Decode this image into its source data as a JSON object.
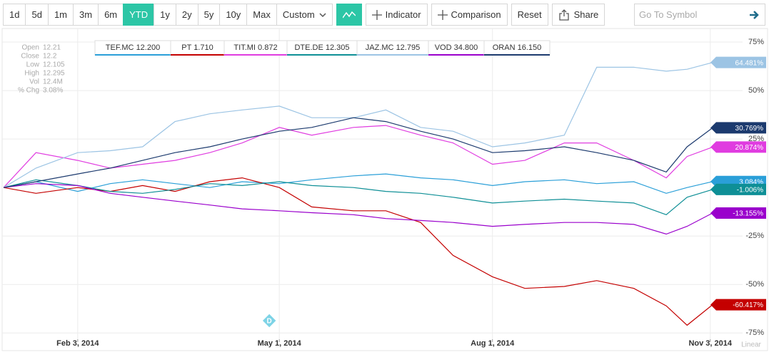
{
  "toolbar": {
    "ranges": [
      "1d",
      "5d",
      "1m",
      "3m",
      "6m",
      "YTD",
      "1y",
      "2y",
      "5y",
      "10y",
      "Max"
    ],
    "active_range": "YTD",
    "custom": "Custom",
    "indicator": "Indicator",
    "comparison": "Comparison",
    "reset": "Reset",
    "share": "Share",
    "search_placeholder": "Go To Symbol"
  },
  "info": [
    {
      "label": "Open",
      "value": "12.21"
    },
    {
      "label": "Close",
      "value": "12.2"
    },
    {
      "label": "Low",
      "value": "12.105"
    },
    {
      "label": "High",
      "value": "12.295"
    },
    {
      "label": "Vol",
      "value": "12.4M"
    },
    {
      "label": "% Chg",
      "value": "3.08%"
    }
  ],
  "event_marker": "D",
  "scale_mode": "Linear",
  "chart_data": {
    "type": "line",
    "x": [
      "2014-01-02",
      "2014-01-16",
      "2014-02-03",
      "2014-02-17",
      "2014-03-03",
      "2014-03-17",
      "2014-04-01",
      "2014-04-15",
      "2014-05-01",
      "2014-05-15",
      "2014-06-02",
      "2014-06-16",
      "2014-07-01",
      "2014-07-15",
      "2014-08-01",
      "2014-08-15",
      "2014-09-01",
      "2014-09-15",
      "2014-10-01",
      "2014-10-15",
      "2014-10-24",
      "2014-11-04"
    ],
    "xlim": [
      "2014-01-02",
      "2014-11-04"
    ],
    "xticks": [
      {
        "value": "2014-02-03",
        "label": "Feb 3, 2014"
      },
      {
        "value": "2014-05-01",
        "label": "May 1, 2014"
      },
      {
        "value": "2014-08-01",
        "label": "Aug 1, 2014"
      },
      {
        "value": "2014-11-03",
        "label": "Nov 3, 2014"
      }
    ],
    "ylim": [
      -76,
      82
    ],
    "yticks": [
      {
        "value": 75,
        "label": "75%"
      },
      {
        "value": 50,
        "label": "50%"
      },
      {
        "value": 25,
        "label": "25%"
      },
      {
        "value": -25,
        "label": "-25%"
      },
      {
        "value": -50,
        "label": "-50%"
      },
      {
        "value": -75,
        "label": "-75%"
      }
    ],
    "grid": true,
    "series": [
      {
        "name": "TEF.MC",
        "price": "12.200",
        "color": "#2a9fd8",
        "end_label": "3.084%",
        "values": [
          0,
          3,
          -2,
          2,
          4,
          2,
          0,
          3,
          2,
          4,
          6,
          7,
          5,
          4,
          1,
          3,
          4,
          2,
          3,
          -3,
          0,
          3.084
        ]
      },
      {
        "name": "PT",
        "price": "1.710",
        "color": "#c40000",
        "end_label": "-60.417%",
        "values": [
          0,
          -3,
          0,
          -2,
          1,
          -2,
          3,
          5,
          0,
          -10,
          -12,
          -12,
          -18,
          -35,
          -46,
          -52,
          -51,
          -48,
          -52,
          -61,
          -71,
          -60.417
        ]
      },
      {
        "name": "TIT.MI",
        "price": "0.872",
        "color": "#e03ce0",
        "end_label": "20.874%",
        "values": [
          0,
          18,
          14,
          10,
          12,
          14,
          18,
          23,
          31,
          27,
          31,
          32,
          27,
          23,
          12,
          14,
          23,
          23,
          14,
          5,
          16,
          20.874
        ]
      },
      {
        "name": "DTE.DE",
        "price": "12.305",
        "color": "#0e8f96",
        "end_label": "-1.006%",
        "values": [
          0,
          4,
          1,
          -2,
          -3,
          -1,
          2,
          1,
          3,
          1,
          0,
          -2,
          -3,
          -5,
          -8,
          -7,
          -6,
          -7,
          -8,
          -14,
          -5,
          -1.006
        ]
      },
      {
        "name": "JAZ.MC",
        "price": "12.795",
        "color": "#9cc4e4",
        "end_label": "64.481%",
        "values": [
          0,
          10,
          18,
          19,
          21,
          34,
          38,
          40,
          42,
          36,
          36,
          40,
          31,
          29,
          21,
          23,
          27,
          62,
          62,
          60,
          61,
          64.481
        ]
      },
      {
        "name": "VOD",
        "price": "34.800",
        "color": "#9a00cc",
        "end_label": "-13.155%",
        "values": [
          0,
          2,
          1,
          -3,
          -5,
          -7,
          -9,
          -11,
          -12,
          -13,
          -14,
          -16,
          -17,
          -18,
          -20,
          -19,
          -18,
          -18,
          -19,
          -24,
          -20,
          -13.155
        ]
      },
      {
        "name": "ORAN",
        "price": "16.150",
        "color": "#1c3a6e",
        "end_label": "30.769%",
        "values": [
          0,
          3,
          7,
          10,
          14,
          18,
          21,
          25,
          29,
          31,
          36,
          34,
          29,
          25,
          18,
          19,
          21,
          18,
          14,
          8,
          21,
          30.769
        ]
      }
    ]
  }
}
